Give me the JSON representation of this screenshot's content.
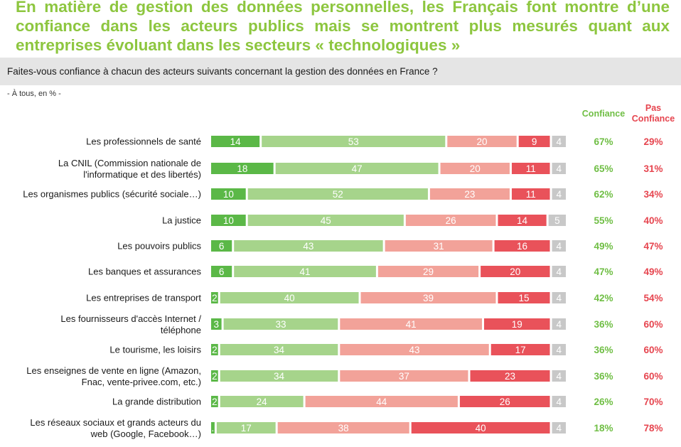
{
  "title": "En matière de gestion des données personnelles, les Français font montre d’une confiance dans les acteurs publics mais se montrent plus mesurés quant aux entreprises évoluant dans les secteurs « technologiques »",
  "question": "Faites-vous confiance à chacun des acteurs suivants concernant la gestion des données en France ?",
  "base_note": "- À tous, en % -",
  "colors": {
    "title": "#8DC63F",
    "tres_confiance": "#5BB847",
    "plutot_confiance": "#A6D48B",
    "plutot_pas_confiance": "#F2A299",
    "pas_du_tout_confiance": "#E9525A",
    "nsp": "#C8C8C8",
    "confiance_total": "#6FBE44",
    "pas_confiance_total": "#E6454F"
  },
  "chart_data": {
    "type": "bar",
    "orientation": "horizontal-stacked",
    "categories": [
      "Les professionnels de santé",
      "La CNIL (Commission nationale de|l'informatique et des libertés)",
      "Les organismes publics (sécurité sociale…)",
      "La justice",
      "Les pouvoirs publics",
      "Les banques et assurances",
      "Les entreprises de transport",
      "Les fournisseurs d'accès Internet /|téléphone",
      "Le tourisme, les loisirs",
      "Les enseignes de vente en ligne (Amazon,|Fnac, vente-privee.com, etc.)",
      "La grande distribution",
      "Les réseaux sociaux et grands acteurs du|web (Google, Facebook…)"
    ],
    "series": [
      {
        "color_key": "tres_confiance",
        "values": [
          14,
          18,
          10,
          10,
          6,
          6,
          2,
          3,
          2,
          2,
          2,
          1
        ],
        "labels": [
          "14",
          "18",
          "10",
          "10",
          "6",
          "6",
          "2",
          "3",
          "2",
          "2",
          "2",
          "."
        ]
      },
      {
        "color_key": "plutot_confiance",
        "values": [
          53,
          47,
          52,
          45,
          43,
          41,
          40,
          33,
          34,
          34,
          24,
          17
        ]
      },
      {
        "color_key": "plutot_pas_confiance",
        "values": [
          20,
          20,
          23,
          26,
          31,
          29,
          39,
          41,
          43,
          37,
          44,
          38
        ]
      },
      {
        "color_key": "pas_du_tout_confiance",
        "values": [
          9,
          11,
          11,
          14,
          16,
          20,
          15,
          19,
          17,
          23,
          26,
          40
        ]
      },
      {
        "color_key": "nsp",
        "values": [
          4,
          4,
          4,
          5,
          4,
          4,
          4,
          4,
          4,
          4,
          4,
          4
        ]
      }
    ],
    "totals": {
      "confiance": {
        "header": "Confiance",
        "values": [
          "67%",
          "65%",
          "62%",
          "55%",
          "49%",
          "47%",
          "42%",
          "36%",
          "36%",
          "36%",
          "26%",
          "18%"
        ]
      },
      "pas_confiance": {
        "header": "Pas|Confiance",
        "values": [
          "29%",
          "31%",
          "34%",
          "40%",
          "47%",
          "49%",
          "54%",
          "60%",
          "60%",
          "60%",
          "70%",
          "78%"
        ]
      }
    }
  }
}
